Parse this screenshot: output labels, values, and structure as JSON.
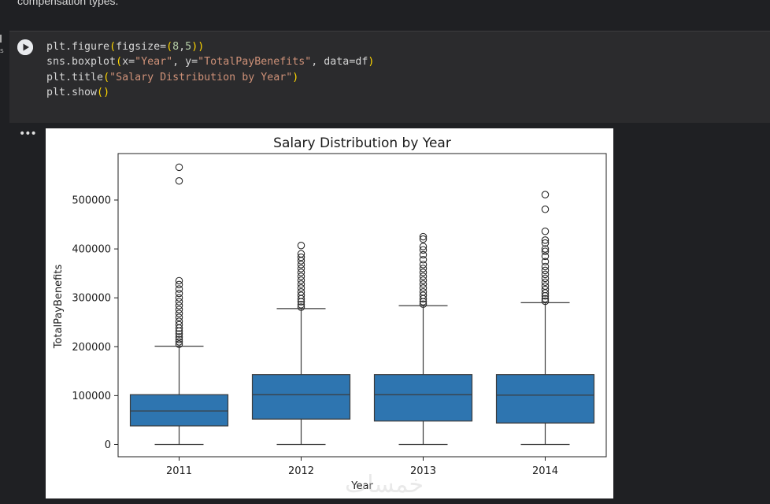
{
  "notebook": {
    "prev_text": "compensation types.",
    "rail_label": "s",
    "code_lines": [
      "plt.figure(figsize=(8,5))",
      "sns.boxplot(x=\"Year\", y=\"TotalPayBenefits\", data=df)",
      "plt.title(\"Salary Distribution by Year\")",
      "plt.show()"
    ],
    "output_menu": "•••"
  },
  "watermark": "خمسات",
  "chart_data": {
    "type": "boxplot",
    "title": "Salary Distribution by Year",
    "xlabel": "Year",
    "ylabel": "TotalPayBenefits",
    "ylim": [
      -25000,
      595000
    ],
    "yticks": [
      0,
      100000,
      200000,
      300000,
      400000,
      500000
    ],
    "ytick_labels": [
      "0",
      "100000",
      "200000",
      "300000",
      "400000",
      "500000"
    ],
    "box_color": "#2e75b0",
    "categories": [
      "2011",
      "2012",
      "2013",
      "2014"
    ],
    "boxes": [
      {
        "category": "2011",
        "whisker_low": 0,
        "q1": 38000,
        "median": 68500,
        "q3": 102000,
        "whisker_high": 201000,
        "outliers": [
          205000,
          210000,
          215000,
          220000,
          226000,
          232000,
          238000,
          245000,
          252000,
          260000,
          268000,
          276000,
          284000,
          292000,
          300000,
          309000,
          318000,
          327000,
          335000,
          539000,
          567000
        ]
      },
      {
        "category": "2012",
        "whisker_low": 0,
        "q1": 52000,
        "median": 102000,
        "q3": 143000,
        "whisker_high": 278000,
        "outliers": [
          281000,
          286000,
          292000,
          298000,
          305000,
          312000,
          320000,
          328000,
          336000,
          344000,
          352000,
          360000,
          368000,
          376000,
          383000,
          390000,
          407000
        ]
      },
      {
        "category": "2013",
        "whisker_low": 0,
        "q1": 48000,
        "median": 102000,
        "q3": 143000,
        "whisker_high": 284000,
        "outliers": [
          287000,
          292000,
          298000,
          305000,
          312000,
          320000,
          328000,
          336000,
          344000,
          352000,
          360000,
          368000,
          378000,
          388000,
          398000,
          405000,
          420000,
          425000
        ]
      },
      {
        "category": "2014",
        "whisker_low": 0,
        "q1": 44000,
        "median": 101000,
        "q3": 143000,
        "whisker_high": 290000,
        "outliers": [
          293000,
          298000,
          304000,
          310000,
          317000,
          324000,
          332000,
          340000,
          348000,
          356000,
          364000,
          374000,
          385000,
          395000,
          400000,
          412000,
          418000,
          436000,
          481000,
          511000
        ]
      }
    ]
  }
}
